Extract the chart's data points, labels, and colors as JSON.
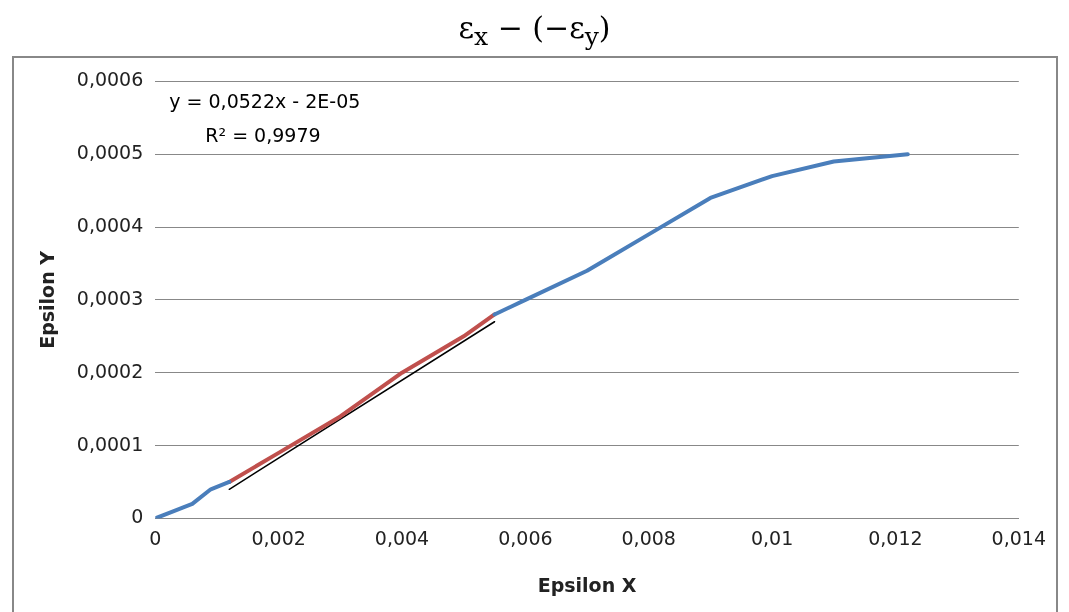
{
  "chart_data": {
    "type": "line",
    "title": "ε$_{x}$ − (−ε$_{y}$)",
    "xlabel": "Epsilon X",
    "ylabel": "Epsilon Y",
    "xlim": [
      0,
      0.014
    ],
    "ylim": [
      0,
      0.0006
    ],
    "xticks": [
      0,
      {
        "value": 0.002,
        "label": "0,002"
      },
      {
        "value": 0.004,
        "label": "0,004"
      },
      {
        "value": 0.006,
        "label": "0,006"
      },
      {
        "value": 0.008,
        "label": "0,008"
      },
      {
        "value": 0.01,
        "label": "0,01"
      },
      {
        "value": 0.012,
        "label": "0,012"
      },
      {
        "value": 0.014,
        "label": "0,014"
      }
    ],
    "yticks": [
      0,
      {
        "value": 0.0001,
        "label": "0,0001"
      },
      {
        "value": 0.0002,
        "label": "0,0002"
      },
      {
        "value": 0.0003,
        "label": "0,0003"
      },
      {
        "value": 0.0004,
        "label": "0,0004"
      },
      {
        "value": 0.0005,
        "label": "0,0005"
      },
      {
        "value": 0.0006,
        "label": "0,0006"
      }
    ],
    "grid": "y",
    "legend": false,
    "marker": "none",
    "annotations": [
      "y = 0,0522x - 2E-05",
      "R² = 0,9979"
    ],
    "series": [
      {
        "color": "#4a7ebb",
        "x": [
          0,
          0.0003,
          0.0006,
          0.0009,
          0.0012,
          0.003,
          0.0055,
          0.006,
          0.007,
          0.008,
          0.009,
          0.01,
          0.011,
          0.0122
        ],
        "values": [
          0,
          1e-05,
          2e-05,
          4e-05,
          5e-05,
          null,
          0.00028,
          0.0003,
          0.00034,
          0.00039,
          0.00044,
          0.00047,
          0.00049,
          0.0005
        ]
      },
      {
        "color": "#c0504d",
        "x": [
          0.0012,
          0.002,
          0.003,
          0.004,
          0.005,
          0.0055
        ],
        "values": [
          5e-05,
          9e-05,
          0.00014,
          0.0002,
          0.00025,
          0.00028
        ]
      },
      {
        "color": "#000000",
        "x": [
          0.0012,
          0.0055
        ],
        "values": [
          4e-05,
          0.00027
        ]
      }
    ]
  }
}
